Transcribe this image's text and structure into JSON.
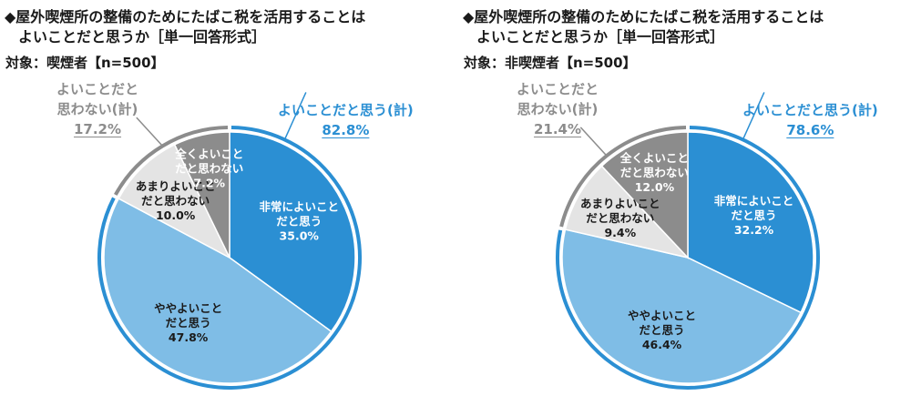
{
  "chart_data": [
    {
      "type": "pie",
      "title_line1": "◆屋外喫煙所の整備のためにたばこ税を活用することは",
      "title_line2": "よいことだと思うか［単一回答形式］",
      "target": "対象：喫煙者【n=500】",
      "positive_total": {
        "label": "よいことだと思う(計)",
        "value": "82.8%"
      },
      "negative_total": {
        "label_line1": "よいことだと",
        "label_line2": "思わない(計)",
        "value": "17.2%"
      },
      "slices": [
        {
          "label_lines": [
            "非常によいこと",
            "だと思う"
          ],
          "value": 35.0,
          "value_text": "35.0%",
          "color": "#2b8fd3",
          "text_color": "#ffffff"
        },
        {
          "label_lines": [
            "ややよいこと",
            "だと思う"
          ],
          "value": 47.8,
          "value_text": "47.8%",
          "color": "#7fbde6",
          "text_color": "#1a1a1a"
        },
        {
          "label_lines": [
            "あまりよいこと",
            "だと思わない"
          ],
          "value": 10.0,
          "value_text": "10.0%",
          "color": "#e4e4e4",
          "text_color": "#1a1a1a"
        },
        {
          "label_lines": [
            "全くよいこと",
            "だと思わない"
          ],
          "value": 7.2,
          "value_text": "7.2%",
          "color": "#8c8c8c",
          "text_color": "#ffffff"
        }
      ],
      "colors": {
        "positive": "#2b8fd3",
        "negative": "#8c8c8c"
      }
    },
    {
      "type": "pie",
      "title_line1": "◆屋外喫煙所の整備のためにたばこ税を活用することは",
      "title_line2": "よいことだと思うか［単一回答形式］",
      "target": "対象：非喫煙者【n=500】",
      "positive_total": {
        "label": "よいことだと思う(計)",
        "value": "78.6%"
      },
      "negative_total": {
        "label_line1": "よいことだと",
        "label_line2": "思わない(計)",
        "value": "21.4%"
      },
      "slices": [
        {
          "label_lines": [
            "非常によいこと",
            "だと思う"
          ],
          "value": 32.2,
          "value_text": "32.2%",
          "color": "#2b8fd3",
          "text_color": "#ffffff"
        },
        {
          "label_lines": [
            "ややよいこと",
            "だと思う"
          ],
          "value": 46.4,
          "value_text": "46.4%",
          "color": "#7fbde6",
          "text_color": "#1a1a1a"
        },
        {
          "label_lines": [
            "あまりよいこと",
            "だと思わない"
          ],
          "value": 9.4,
          "value_text": "9.4%",
          "color": "#e4e4e4",
          "text_color": "#1a1a1a"
        },
        {
          "label_lines": [
            "全くよいこと",
            "だと思わない"
          ],
          "value": 12.0,
          "value_text": "12.0%",
          "color": "#8c8c8c",
          "text_color": "#ffffff"
        }
      ],
      "colors": {
        "positive": "#2b8fd3",
        "negative": "#8c8c8c"
      }
    }
  ]
}
